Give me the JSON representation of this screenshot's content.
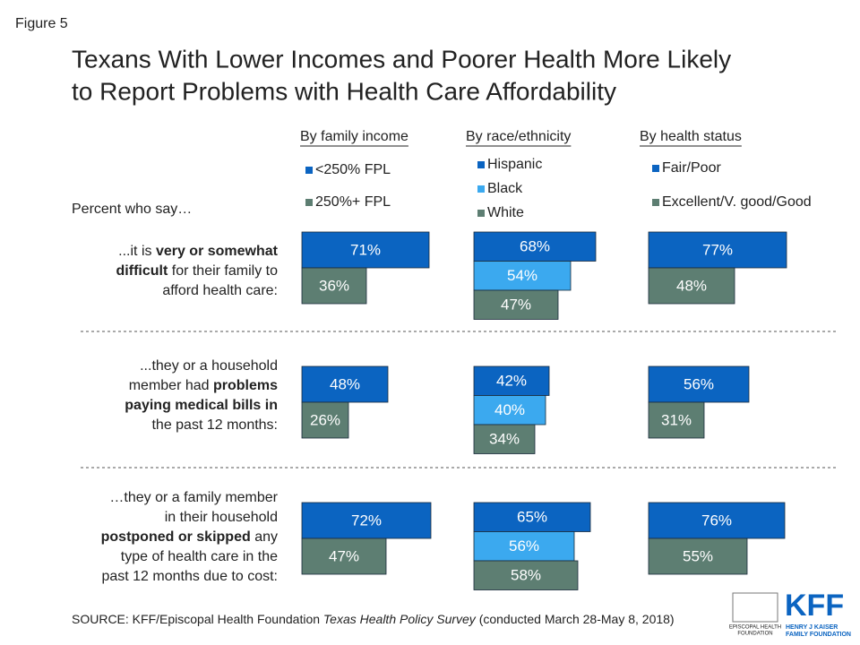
{
  "figure_label": "Figure 5",
  "title_lines": [
    "Texans With Lower Incomes and Poorer Health More Likely",
    "to Report Problems with Health Care Affordability"
  ],
  "row_heading": "Percent who say…",
  "questions": [
    [
      [
        {
          "text": "...it is "
        },
        {
          "text": "very or somewhat",
          "bold": true
        }
      ],
      [
        {
          "text": "difficult",
          "bold": true
        },
        {
          "text": " for their family to"
        }
      ],
      [
        {
          "text": "afford health care:"
        }
      ]
    ],
    [
      [
        {
          "text": "...they or a household"
        }
      ],
      [
        {
          "text": "member had "
        },
        {
          "text": "problems",
          "bold": true
        }
      ],
      [
        {
          "text": "paying medical bills in",
          "bold": true
        }
      ],
      [
        {
          "text": "the past 12 months:"
        }
      ]
    ],
    [
      [
        {
          "text": "…they or a family member"
        }
      ],
      [
        {
          "text": "in their household"
        }
      ],
      [
        {
          "text": "postponed or skipped",
          "bold": true
        },
        {
          "text": " any"
        }
      ],
      [
        {
          "text": "type of health care in the"
        }
      ],
      [
        {
          "text": "past 12 months due to cost:"
        }
      ]
    ]
  ],
  "chart_data": [
    {
      "type": "bar",
      "title": "By family income",
      "xlim": [
        0,
        100
      ],
      "series": [
        {
          "name": "<250% FPL",
          "color": "#0b64c1",
          "values": [
            71,
            48,
            72
          ],
          "value_labels": [
            "71%",
            "48%",
            "72%"
          ]
        },
        {
          "name": "250%+ FPL",
          "color": "#5d7e72",
          "values": [
            36,
            26,
            47
          ],
          "value_labels": [
            "36%",
            "26%",
            "47%"
          ]
        }
      ]
    },
    {
      "type": "bar",
      "title": "By race/ethnicity",
      "xlim": [
        0,
        100
      ],
      "series": [
        {
          "name": "Hispanic",
          "color": "#0b64c1",
          "values": [
            68,
            42,
            65
          ],
          "value_labels": [
            "68%",
            "42%",
            "65%"
          ]
        },
        {
          "name": "Black",
          "color": "#3ba9ef",
          "values": [
            54,
            40,
            56
          ],
          "value_labels": [
            "54%",
            "40%",
            "56%"
          ]
        },
        {
          "name": "White",
          "color": "#5d7e72",
          "values": [
            47,
            34,
            58
          ],
          "value_labels": [
            "47%",
            "34%",
            "58%"
          ]
        }
      ]
    },
    {
      "type": "bar",
      "title": "By health status",
      "xlim": [
        0,
        100
      ],
      "series": [
        {
          "name": "Fair/Poor",
          "color": "#0b64c1",
          "values": [
            77,
            56,
            76
          ],
          "value_labels": [
            "77%",
            "56%",
            "76%"
          ]
        },
        {
          "name": "Excellent/V. good/Good",
          "color": "#5d7e72",
          "values": [
            48,
            31,
            55
          ],
          "value_labels": [
            "48%",
            "31%",
            "55%"
          ]
        }
      ]
    }
  ],
  "source": [
    {
      "text": "SOURCE: KFF/Episcopal Health Foundation "
    },
    {
      "text": "Texas Health Policy Survey",
      "italic": true
    },
    {
      "text": " (conducted March 28-May 8, 2018)"
    }
  ],
  "logos": {
    "ehf": [
      "EPISCOPAL HEALTH",
      "FOUNDATION"
    ],
    "kff": "KFF",
    "kff_sub": [
      "HENRY J KAISER",
      "FAMILY FOUNDATION"
    ]
  }
}
